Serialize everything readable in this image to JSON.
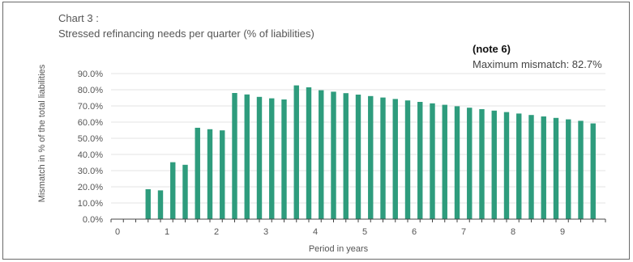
{
  "chart_data": {
    "type": "bar",
    "title_line1": "Chart 3 :",
    "title_line2": "Stressed refinancing needs per quarter  (% of liabilities)",
    "annotation_note": "(note 6)",
    "annotation_max": "Maximum mismatch: 82.7%",
    "xlabel": "Period in years",
    "ylabel": "Mismatch in % of the total liabilities",
    "ylim": [
      0,
      90
    ],
    "yticks": [
      "0.0%",
      "10.0%",
      "20.0%",
      "30.0%",
      "40.0%",
      "50.0%",
      "60.0%",
      "70.0%",
      "80.0%",
      "90.0%"
    ],
    "xlim": [
      0,
      10
    ],
    "xticks": [
      "0",
      "1",
      "2",
      "3",
      "4",
      "5",
      "6",
      "7",
      "8",
      "9"
    ],
    "bar_color": "#2e9c7d",
    "x": [
      0.75,
      1.0,
      1.25,
      1.5,
      1.75,
      2.0,
      2.25,
      2.5,
      2.75,
      3.0,
      3.25,
      3.5,
      3.75,
      4.0,
      4.25,
      4.5,
      4.75,
      5.0,
      5.25,
      5.5,
      5.75,
      6.0,
      6.25,
      6.5,
      6.75,
      7.0,
      7.25,
      7.5,
      7.75,
      8.0,
      8.25,
      8.5,
      8.75,
      9.0,
      9.25,
      9.5,
      9.75
    ],
    "values": [
      18.5,
      17.8,
      35.2,
      33.6,
      56.5,
      55.6,
      54.9,
      78.0,
      77.1,
      75.6,
      74.7,
      74.0,
      82.7,
      81.5,
      79.7,
      78.8,
      77.9,
      77.0,
      76.1,
      75.2,
      74.3,
      73.4,
      72.5,
      71.6,
      70.7,
      69.8,
      68.9,
      68.0,
      67.1,
      66.2,
      65.3,
      64.4,
      63.5,
      62.6,
      61.7,
      60.8,
      59.2
    ]
  }
}
